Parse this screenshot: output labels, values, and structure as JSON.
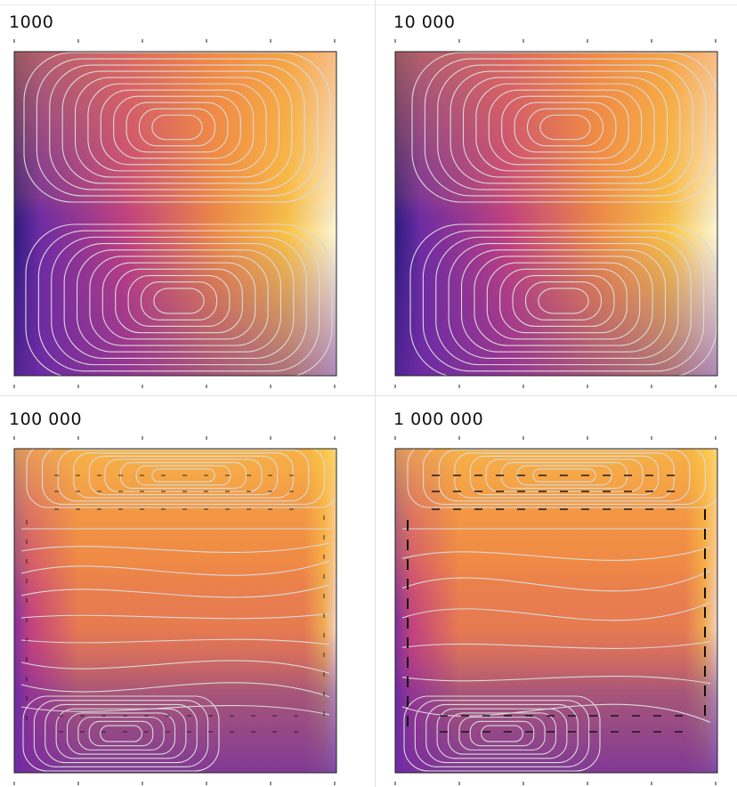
{
  "chart_data": [
    {
      "type": "heatmap",
      "title": "1000",
      "circulation": "two-cell",
      "flow_arrows": false
    },
    {
      "type": "heatmap",
      "title": "10 000",
      "circulation": "two-cell",
      "flow_arrows": false
    },
    {
      "type": "heatmap",
      "title": "100 000",
      "circulation": "boundary-layer",
      "flow_arrows": true
    },
    {
      "type": "heatmap",
      "title": "1 000 000",
      "circulation": "boundary-layer",
      "flow_arrows": true
    }
  ],
  "colors": {
    "colormap": [
      "#2c1b7e",
      "#6d2ba3",
      "#c2417f",
      "#f08a45",
      "#fbc546",
      "#fdf9d6"
    ],
    "streamline": "#d9d9d9",
    "arrow": "#111111",
    "frame": "#222222",
    "divider": "#e2e2e2"
  }
}
